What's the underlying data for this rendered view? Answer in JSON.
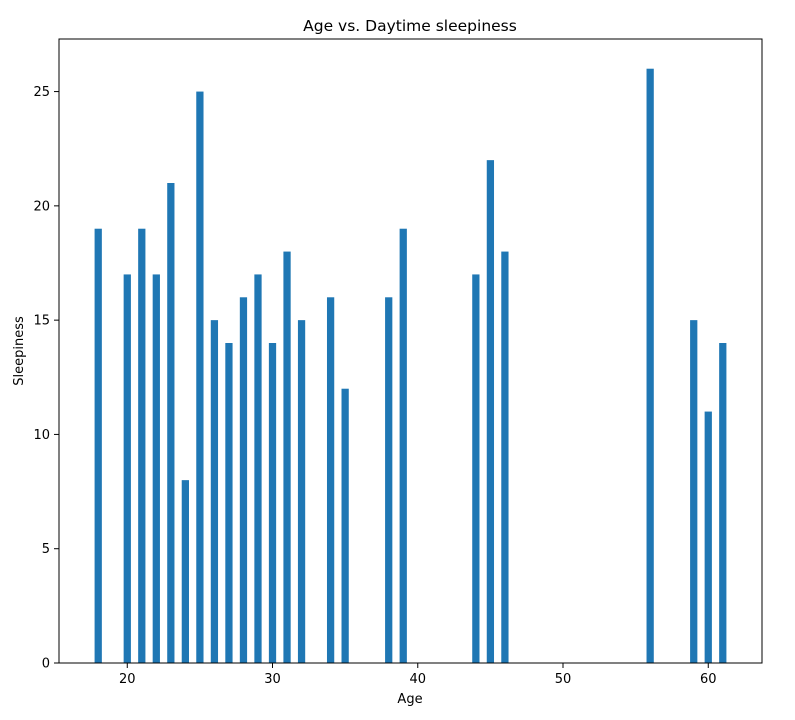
{
  "chart_data": {
    "type": "bar",
    "title": "Age vs. Daytime sleepiness",
    "xlabel": "Age",
    "ylabel": "Sleepiness",
    "x": [
      18,
      20,
      21,
      22,
      23,
      24,
      25,
      26,
      27,
      28,
      29,
      30,
      31,
      32,
      34,
      35,
      38,
      39,
      44,
      45,
      46,
      56,
      59,
      60,
      61
    ],
    "values": [
      19,
      17,
      19,
      17,
      21,
      8,
      25,
      15,
      14,
      16,
      17,
      14,
      18,
      15,
      16,
      12,
      16,
      19,
      17,
      22,
      18,
      26,
      15,
      11,
      14
    ],
    "xlim": [
      15.3,
      63.7
    ],
    "ylim": [
      0,
      27.3
    ],
    "xticks": [
      20,
      30,
      40,
      50,
      60
    ],
    "yticks": [
      0,
      5,
      10,
      15,
      20,
      25
    ],
    "bar_width": 0.5,
    "bar_color": "#1f77b4",
    "grid": false,
    "legend": "none"
  }
}
